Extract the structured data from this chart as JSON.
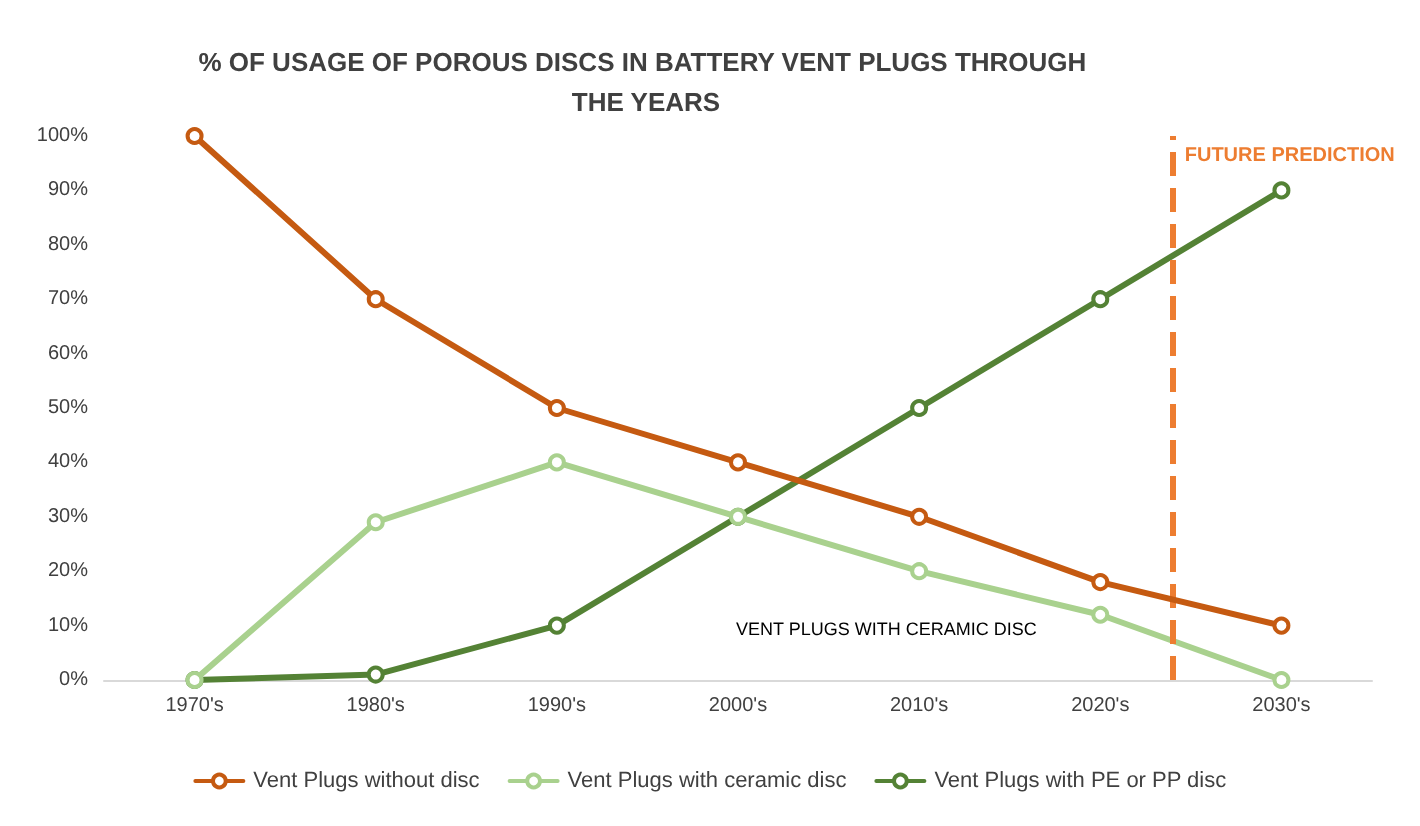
{
  "chart_data": {
    "type": "line",
    "title": "% OF USAGE OF POROUS DISCS IN BATTERY VENT PLUGS THROUGH THE YEARS",
    "x": [
      1970,
      1980,
      1990,
      2000,
      2010,
      2020,
      2030
    ],
    "xlim": [
      1965,
      2035
    ],
    "xticks": [
      {
        "value": 1970,
        "label": "1970's"
      },
      {
        "value": 1980,
        "label": "1980's"
      },
      {
        "value": 1990,
        "label": "1990's"
      },
      {
        "value": 2000,
        "label": "2000's"
      },
      {
        "value": 2010,
        "label": "2010's"
      },
      {
        "value": 2020,
        "label": "2020's"
      },
      {
        "value": 2030,
        "label": "2030's"
      }
    ],
    "series": [
      {
        "name": "Vent Plugs without disc",
        "color": "#c55a11",
        "values": [
          100,
          70,
          50,
          40,
          30,
          18,
          10
        ]
      },
      {
        "name": "Vent Plugs with ceramic disc",
        "color": "#a9d18e",
        "values": [
          0,
          29,
          40,
          30,
          20,
          12,
          0
        ]
      },
      {
        "name": "Vent Plugs with PE or PP disc",
        "color": "#548235",
        "values": [
          0,
          1,
          10,
          30,
          50,
          70,
          90
        ]
      }
    ],
    "ylim": [
      0,
      100
    ],
    "yticks": [
      {
        "value": 0,
        "label": "0%"
      },
      {
        "value": 10,
        "label": "10%"
      },
      {
        "value": 20,
        "label": "20%"
      },
      {
        "value": 30,
        "label": "30%"
      },
      {
        "value": 40,
        "label": "40%"
      },
      {
        "value": 50,
        "label": "50%"
      },
      {
        "value": 60,
        "label": "60%"
      },
      {
        "value": 70,
        "label": "70%"
      },
      {
        "value": 80,
        "label": "80%"
      },
      {
        "value": 90,
        "label": "90%"
      },
      {
        "value": 100,
        "label": "100%"
      }
    ],
    "ref_lines": [
      {
        "axis": "x",
        "value": 2024,
        "label": "FUTURE PREDICTION",
        "color": "#ed7d31",
        "line_style": "dashed"
      }
    ],
    "annotations": [
      "VENT PLUGS WITH CERAMIC DISC"
    ],
    "marker": "circle",
    "line_style": "solid",
    "grid": false,
    "legend": "bottom"
  }
}
